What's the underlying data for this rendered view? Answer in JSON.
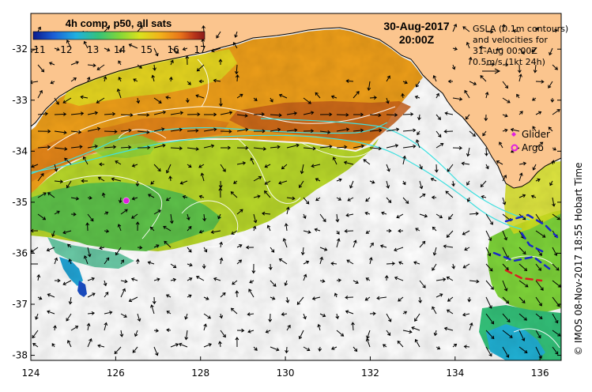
{
  "colorbar": {
    "title": "4h comp, p50, all sats",
    "ticks": [
      "11",
      "12",
      "13",
      "14",
      "15",
      "16",
      "17"
    ],
    "colors": [
      "#0a1a8c",
      "#1b5fd6",
      "#1fb0e0",
      "#34c27a",
      "#7fd63a",
      "#d9e21e",
      "#f2b21a",
      "#e8731a",
      "#b8341a",
      "#8a1a1a"
    ]
  },
  "timestamp": {
    "date": "30-Aug-2017",
    "time": "20:00Z"
  },
  "annotation": {
    "line1": "GSLA (0.1m contours)",
    "line2": "and velocities for",
    "line3": "31-Aug 00:00Z",
    "line4": "0.5m/s (1kt 24h)"
  },
  "legend": {
    "glider": "Glider",
    "argo": "Argo",
    "glider_color": "#e020e0",
    "argo_color": "#e020e0"
  },
  "credit": "© IMOS 08-Nov-2017 18:55 Hobart Time",
  "axes": {
    "x_ticks": [
      "124",
      "126",
      "128",
      "130",
      "132",
      "134",
      "136"
    ],
    "y_ticks": [
      "-32",
      "-33",
      "-34",
      "-35",
      "-36",
      "-37",
      "-38"
    ],
    "xlim": [
      124,
      136.5
    ],
    "ylim": [
      -38.1,
      -31.3
    ]
  },
  "markers": {
    "argo": {
      "lon": 126.25,
      "lat": -34.97
    }
  },
  "colors": {
    "land": "#fbc58e",
    "no_data": "#ffffff",
    "contour": "#ffffff",
    "current_line": "#40e0e0"
  }
}
